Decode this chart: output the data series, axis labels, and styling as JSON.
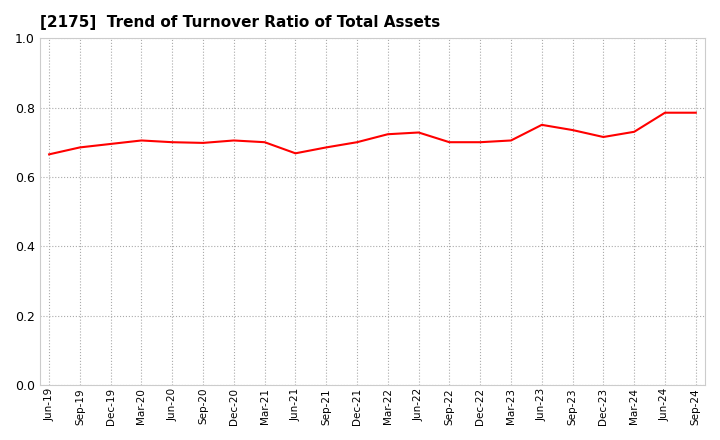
{
  "title": "[2175]  Trend of Turnover Ratio of Total Assets",
  "line_color": "#FF0000",
  "line_width": 1.5,
  "background_color": "#FFFFFF",
  "grid_color": "#AAAAAA",
  "ylim": [
    0.0,
    1.0
  ],
  "yticks": [
    0.0,
    0.2,
    0.4,
    0.6,
    0.8,
    1.0
  ],
  "labels": [
    "Jun-19",
    "Sep-19",
    "Dec-19",
    "Mar-20",
    "Jun-20",
    "Sep-20",
    "Dec-20",
    "Mar-21",
    "Jun-21",
    "Sep-21",
    "Dec-21",
    "Mar-22",
    "Jun-22",
    "Sep-22",
    "Dec-22",
    "Mar-23",
    "Jun-23",
    "Sep-23",
    "Dec-23",
    "Mar-24",
    "Jun-24",
    "Sep-24"
  ],
  "values": [
    0.665,
    0.685,
    0.695,
    0.705,
    0.7,
    0.698,
    0.705,
    0.7,
    0.668,
    0.685,
    0.7,
    0.723,
    0.728,
    0.7,
    0.7,
    0.705,
    0.75,
    0.735,
    0.715,
    0.73,
    0.785,
    0.785
  ]
}
